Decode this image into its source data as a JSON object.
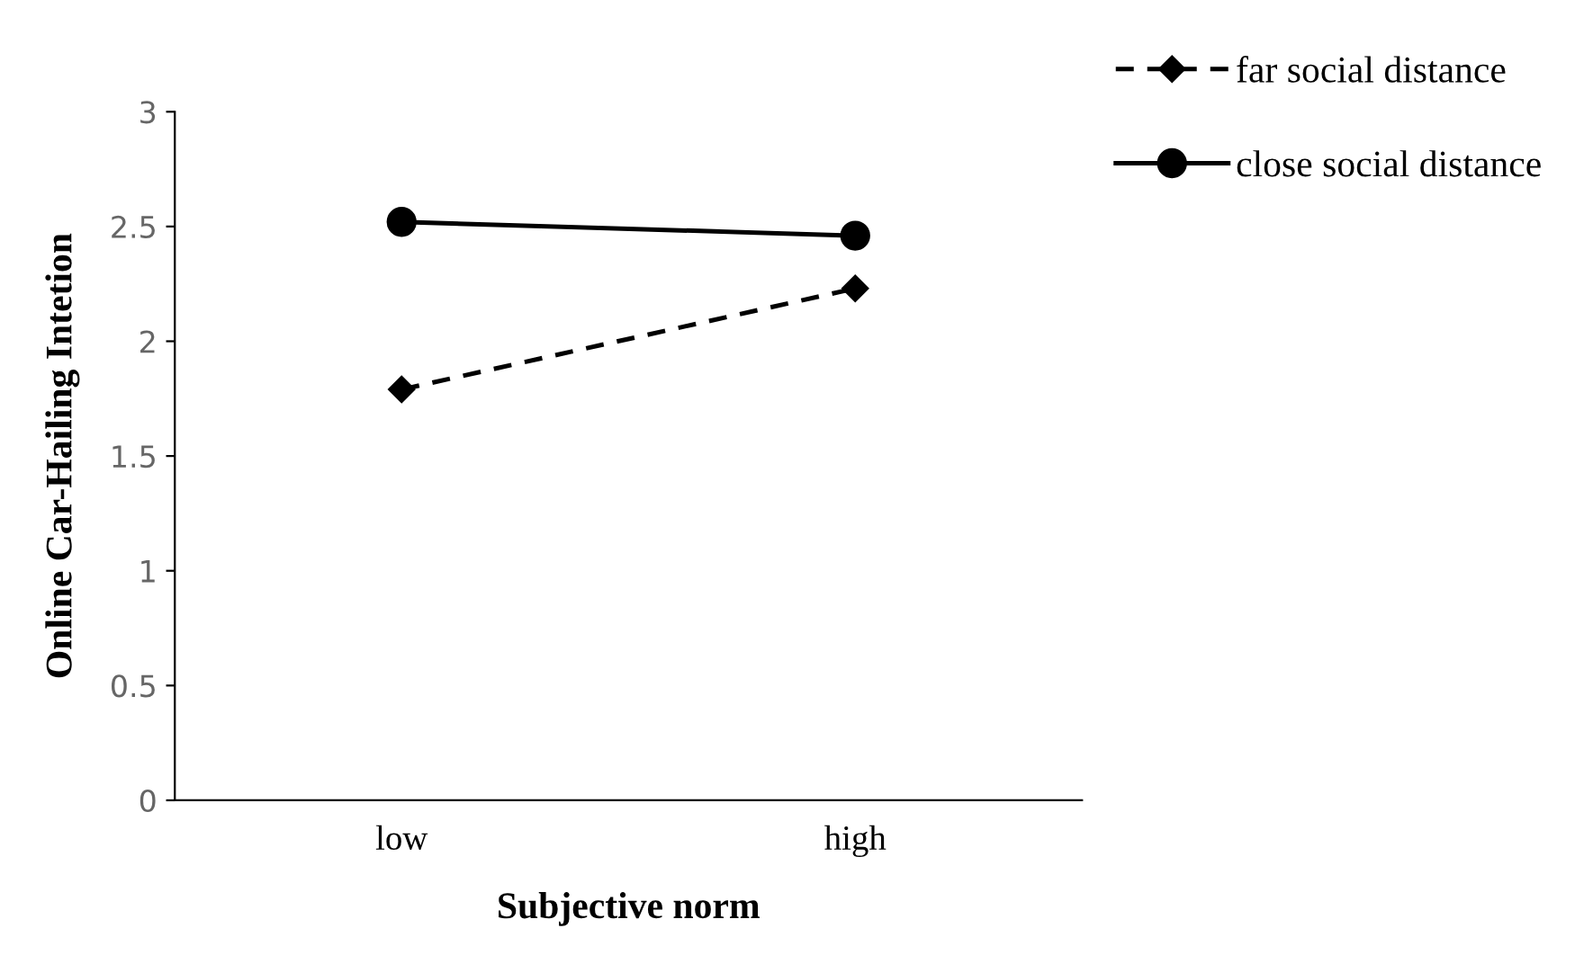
{
  "chart_data": {
    "type": "line",
    "xlabel": "Subjective norm",
    "ylabel": "Online Car-Hailing Intetion",
    "categories": [
      "low",
      "high"
    ],
    "series": [
      {
        "name": "far social distance",
        "color": "#000000",
        "values": [
          1.79,
          2.23
        ],
        "marker": "diamond",
        "line_style": "dashed"
      },
      {
        "name": "close social distance",
        "color": "#000000",
        "values": [
          2.52,
          2.46
        ],
        "marker": "circle",
        "line_style": "solid"
      }
    ],
    "ylim": [
      0,
      3
    ],
    "yticks": [
      0,
      0.5,
      1,
      1.5,
      2,
      2.5,
      3
    ],
    "grid": false,
    "legend": "top right"
  }
}
